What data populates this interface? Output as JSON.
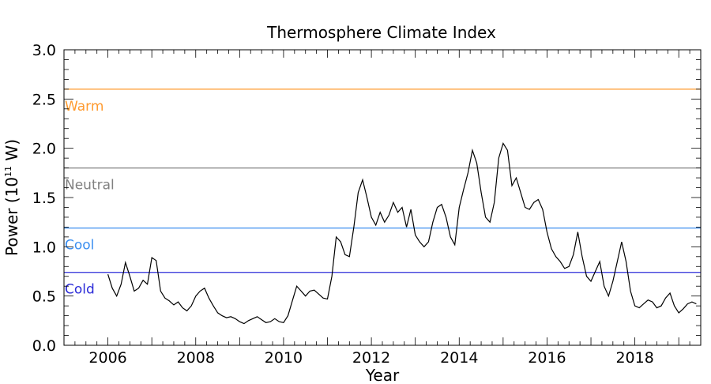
{
  "chart_data": {
    "type": "line",
    "title": "Thermosphere Climate Index",
    "xlabel": "Year",
    "ylabel_main": "Power (10",
    "ylabel_exp": "11",
    "ylabel_tail": " W)",
    "xlim": [
      2005.0,
      2019.5
    ],
    "ylim": [
      0.0,
      3.0
    ],
    "x_ticks": [
      2006,
      2008,
      2010,
      2012,
      2014,
      2016,
      2018
    ],
    "y_ticks": [
      "0.0",
      "0.5",
      "1.0",
      "1.5",
      "2.0",
      "2.5",
      "3.0"
    ],
    "reference_lines": [
      {
        "label": "Warm",
        "value": 2.6,
        "color": "#ff9a2e"
      },
      {
        "label": "Neutral",
        "value": 1.8,
        "color": "#808080"
      },
      {
        "label": "Cool",
        "value": 1.19,
        "color": "#3a8ef0"
      },
      {
        "label": "Cold",
        "value": 0.74,
        "color": "#2b2bd8"
      }
    ],
    "series": [
      {
        "color": "#000000",
        "x": [
          2006.0,
          2006.1,
          2006.2,
          2006.3,
          2006.4,
          2006.5,
          2006.6,
          2006.7,
          2006.8,
          2006.9,
          2007.0,
          2007.1,
          2007.2,
          2007.3,
          2007.4,
          2007.5,
          2007.6,
          2007.7,
          2007.8,
          2007.9,
          2008.0,
          2008.1,
          2008.2,
          2008.3,
          2008.4,
          2008.5,
          2008.6,
          2008.7,
          2008.8,
          2008.9,
          2009.0,
          2009.1,
          2009.2,
          2009.3,
          2009.4,
          2009.5,
          2009.6,
          2009.7,
          2009.8,
          2009.9,
          2010.0,
          2010.1,
          2010.2,
          2010.3,
          2010.4,
          2010.5,
          2010.6,
          2010.7,
          2010.8,
          2010.9,
          2011.0,
          2011.1,
          2011.2,
          2011.3,
          2011.4,
          2011.5,
          2011.6,
          2011.7,
          2011.8,
          2011.9,
          2012.0,
          2012.1,
          2012.2,
          2012.3,
          2012.4,
          2012.5,
          2012.6,
          2012.7,
          2012.8,
          2012.9,
          2013.0,
          2013.1,
          2013.2,
          2013.3,
          2013.4,
          2013.5,
          2013.6,
          2013.7,
          2013.8,
          2013.9,
          2014.0,
          2014.1,
          2014.2,
          2014.3,
          2014.4,
          2014.5,
          2014.6,
          2014.7,
          2014.8,
          2014.9,
          2015.0,
          2015.1,
          2015.2,
          2015.3,
          2015.4,
          2015.5,
          2015.6,
          2015.7,
          2015.8,
          2015.9,
          2016.0,
          2016.1,
          2016.2,
          2016.3,
          2016.4,
          2016.5,
          2016.6,
          2016.7,
          2016.8,
          2016.9,
          2017.0,
          2017.1,
          2017.2,
          2017.3,
          2017.4,
          2017.5,
          2017.6,
          2017.7,
          2017.8,
          2017.9,
          2018.0,
          2018.1,
          2018.2,
          2018.3,
          2018.4,
          2018.5,
          2018.6,
          2018.7,
          2018.8,
          2018.9,
          2019.0,
          2019.1,
          2019.2,
          2019.3,
          2019.4
        ],
        "y": [
          0.72,
          0.58,
          0.5,
          0.62,
          0.84,
          0.7,
          0.55,
          0.58,
          0.66,
          0.62,
          0.89,
          0.86,
          0.55,
          0.48,
          0.45,
          0.41,
          0.44,
          0.38,
          0.35,
          0.4,
          0.5,
          0.55,
          0.58,
          0.48,
          0.4,
          0.33,
          0.3,
          0.28,
          0.29,
          0.27,
          0.24,
          0.22,
          0.25,
          0.27,
          0.29,
          0.26,
          0.23,
          0.24,
          0.27,
          0.24,
          0.23,
          0.3,
          0.45,
          0.6,
          0.55,
          0.5,
          0.55,
          0.56,
          0.52,
          0.48,
          0.47,
          0.7,
          1.1,
          1.05,
          0.92,
          0.9,
          1.2,
          1.55,
          1.68,
          1.5,
          1.3,
          1.22,
          1.35,
          1.25,
          1.32,
          1.45,
          1.35,
          1.4,
          1.2,
          1.38,
          1.12,
          1.05,
          1.0,
          1.05,
          1.25,
          1.4,
          1.43,
          1.3,
          1.1,
          1.02,
          1.4,
          1.58,
          1.75,
          1.98,
          1.85,
          1.55,
          1.3,
          1.25,
          1.45,
          1.9,
          2.05,
          1.98,
          1.62,
          1.7,
          1.55,
          1.4,
          1.38,
          1.45,
          1.48,
          1.38,
          1.15,
          0.98,
          0.9,
          0.85,
          0.78,
          0.8,
          0.92,
          1.15,
          0.9,
          0.7,
          0.65,
          0.75,
          0.85,
          0.6,
          0.5,
          0.65,
          0.85,
          1.05,
          0.85,
          0.55,
          0.4,
          0.38,
          0.42,
          0.46,
          0.44,
          0.38,
          0.4,
          0.48,
          0.53,
          0.4,
          0.33,
          0.37,
          0.42,
          0.44,
          0.42
        ]
      }
    ]
  }
}
